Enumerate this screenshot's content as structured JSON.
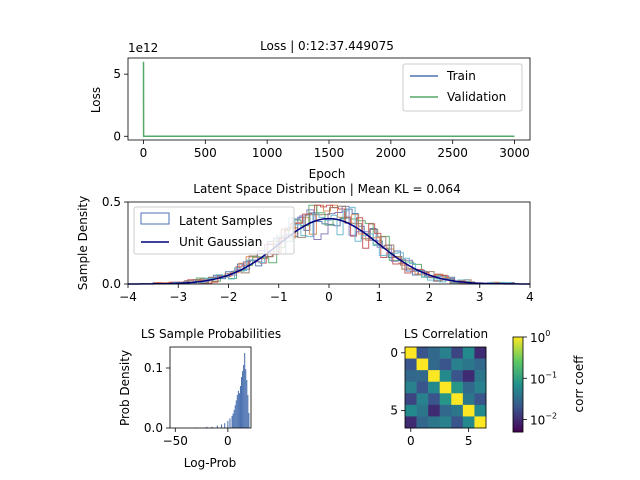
{
  "chart_data": [
    {
      "type": "line",
      "title": "Loss | 0:12:37.449075",
      "xlabel": "Epoch",
      "ylabel": "Loss",
      "y_multiplier_label": "1e12",
      "xlim": [
        -125,
        3125
      ],
      "ylim": [
        -0.3,
        6.3
      ],
      "x_ticks": [
        0,
        500,
        1000,
        1500,
        2000,
        2500,
        3000
      ],
      "y_ticks": [
        0,
        5
      ],
      "legend": "top-right",
      "series": [
        {
          "name": "Train",
          "color": "#4c72b0",
          "x": [
            0,
            3000
          ],
          "y": [
            0,
            0
          ]
        },
        {
          "name": "Validation",
          "color": "#55a868",
          "x": [
            0,
            1,
            3000
          ],
          "y": [
            6.0,
            0,
            0
          ]
        }
      ]
    },
    {
      "type": "line",
      "title": "Latent Space Distribution | Mean KL = 0.064",
      "ylabel": "Sample Density",
      "xlim": [
        -4,
        4
      ],
      "ylim": [
        0,
        0.5
      ],
      "x_ticks": [
        -4,
        -3,
        -2,
        -1,
        0,
        1,
        2,
        3,
        4
      ],
      "y_ticks": [
        0.0,
        0.5
      ],
      "legend": "top-left",
      "series": [
        {
          "name": "Latent Samples",
          "style": "step-histograms",
          "colors": [
            "#4c72b0",
            "#dd8452",
            "#55a868",
            "#c44e52",
            "#8172b3",
            "#937860",
            "#64b5cd"
          ]
        },
        {
          "name": "Unit Gaussian",
          "color": "#000080",
          "function": "standard normal pdf"
        }
      ]
    },
    {
      "type": "bar",
      "title": "LS Sample Probabilities",
      "xlabel": "Log-Prob",
      "ylabel": "Prob Density",
      "xlim": [
        -55,
        22
      ],
      "ylim": [
        0,
        0.135
      ],
      "x_ticks": [
        -50,
        0
      ],
      "y_ticks": [
        0.0,
        0.1
      ],
      "color": "#4c72b0",
      "bins": [
        {
          "x": -30,
          "v": 0.001
        },
        {
          "x": -20,
          "v": 0.002
        },
        {
          "x": -15,
          "v": 0.002
        },
        {
          "x": -10,
          "v": 0.004
        },
        {
          "x": -6,
          "v": 0.006
        },
        {
          "x": -3,
          "v": 0.008
        },
        {
          "x": 0,
          "v": 0.012
        },
        {
          "x": 2,
          "v": 0.016
        },
        {
          "x": 4,
          "v": 0.02
        },
        {
          "x": 5,
          "v": 0.024
        },
        {
          "x": 6,
          "v": 0.03
        },
        {
          "x": 7,
          "v": 0.038
        },
        {
          "x": 8,
          "v": 0.046
        },
        {
          "x": 9,
          "v": 0.055
        },
        {
          "x": 10,
          "v": 0.062
        },
        {
          "x": 11,
          "v": 0.058
        },
        {
          "x": 12,
          "v": 0.07
        },
        {
          "x": 13,
          "v": 0.085
        },
        {
          "x": 14,
          "v": 0.095
        },
        {
          "x": 15,
          "v": 0.105
        },
        {
          "x": 16,
          "v": 0.125
        },
        {
          "x": 17,
          "v": 0.098
        },
        {
          "x": 18,
          "v": 0.08
        },
        {
          "x": 19,
          "v": 0.055
        },
        {
          "x": 20,
          "v": 0.025
        }
      ]
    },
    {
      "type": "heatmap",
      "title": "LS Correlation",
      "x_ticks": [
        0,
        5
      ],
      "y_ticks": [
        0,
        5
      ],
      "colorbar": {
        "label": "corr coeff",
        "scale": "log",
        "range": [
          0.005,
          1
        ],
        "ticks": [
          {
            "value": 1,
            "label": "10",
            "exp": "0"
          },
          {
            "value": 0.1,
            "label": "10",
            "exp": "−1"
          },
          {
            "value": 0.01,
            "label": "10",
            "exp": "−2"
          }
        ]
      },
      "matrix": [
        [
          1.0,
          0.02,
          0.03,
          0.05,
          0.015,
          0.06,
          0.01
        ],
        [
          0.02,
          1.0,
          0.03,
          0.02,
          0.05,
          0.04,
          0.03
        ],
        [
          0.03,
          0.03,
          1.0,
          0.06,
          0.02,
          0.01,
          0.04
        ],
        [
          0.05,
          0.02,
          0.06,
          1.0,
          0.08,
          0.03,
          0.05
        ],
        [
          0.015,
          0.05,
          0.02,
          0.08,
          1.0,
          0.04,
          0.02
        ],
        [
          0.06,
          0.04,
          0.01,
          0.03,
          0.04,
          1.0,
          0.06
        ],
        [
          0.01,
          0.03,
          0.04,
          0.05,
          0.02,
          0.06,
          1.0
        ]
      ]
    }
  ]
}
